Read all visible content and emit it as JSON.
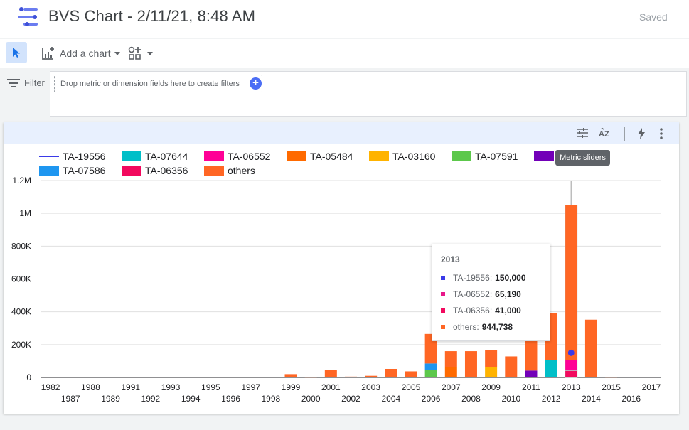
{
  "app": {
    "title": "BVS Chart - 2/11/21, 8:48 AM",
    "save_status": "Saved"
  },
  "toolbar": {
    "add_chart_label": "Add a chart"
  },
  "filter": {
    "label": "Filter",
    "drop_placeholder": "Drop metric or dimension fields here to create filters"
  },
  "card": {
    "tooltip": "Metric sliders"
  },
  "hover": {
    "title": "2013",
    "rows": [
      {
        "name": "TA-19556",
        "value": "150,000",
        "color": "#3a3ae8"
      },
      {
        "name": "TA-06552",
        "value": "65,190",
        "color": "#e8178a"
      },
      {
        "name": "TA-06356",
        "value": "41,000",
        "color": "#f2095e"
      },
      {
        "name": "others",
        "value": "944,738",
        "color": "#ff6624"
      }
    ]
  },
  "legend": [
    {
      "name": "TA-19556",
      "color": "#3a3ae8",
      "kind": "line"
    },
    {
      "name": "TA-07644",
      "color": "#00bfc8",
      "kind": "bar"
    },
    {
      "name": "TA-06552",
      "color": "#ff0096",
      "kind": "bar"
    },
    {
      "name": "TA-05484",
      "color": "#ff6a00",
      "kind": "bar"
    },
    {
      "name": "TA-03160",
      "color": "#ffb300",
      "kind": "bar"
    },
    {
      "name": "TA-07591",
      "color": "#5cc84b",
      "kind": "bar"
    },
    {
      "name": "",
      "color": "#7200b8",
      "kind": "bar"
    },
    {
      "name": "TA-07586",
      "color": "#1e96f0",
      "kind": "bar"
    },
    {
      "name": "TA-06356",
      "color": "#f2095e",
      "kind": "bar"
    },
    {
      "name": "others",
      "color": "#ff6624",
      "kind": "bar"
    }
  ],
  "chart_data": {
    "type": "bar",
    "stacked": true,
    "ylim": [
      0,
      1200000
    ],
    "y_ticks": [
      0,
      200000,
      400000,
      600000,
      800000,
      1000000,
      1200000
    ],
    "y_tick_labels": [
      "0",
      "200K",
      "400K",
      "600K",
      "800K",
      "1M",
      "1.2M"
    ],
    "grid": true,
    "legend_position": "top",
    "categories": [
      "1982",
      "1987",
      "1988",
      "1989",
      "1991",
      "1992",
      "1993",
      "1994",
      "1995",
      "1996",
      "1997",
      "1998",
      "1999",
      "2000",
      "2001",
      "2002",
      "2003",
      "2004",
      "2005",
      "2006",
      "2007",
      "2008",
      "2009",
      "2010",
      "2011",
      "2012",
      "2013",
      "2014",
      "2015",
      "2016",
      "2017"
    ],
    "series": [
      {
        "name": "TA-07591",
        "color": "#5cc84b",
        "values": [
          0,
          0,
          0,
          0,
          0,
          0,
          0,
          0,
          0,
          0,
          0,
          0,
          0,
          0,
          0,
          0,
          0,
          0,
          0,
          45000,
          0,
          0,
          0,
          0,
          0,
          0,
          0,
          0,
          0,
          0,
          0
        ]
      },
      {
        "name": "TA-07586",
        "color": "#1e96f0",
        "values": [
          0,
          0,
          0,
          0,
          0,
          0,
          0,
          0,
          0,
          0,
          0,
          0,
          0,
          0,
          0,
          0,
          0,
          0,
          0,
          40000,
          0,
          0,
          0,
          0,
          0,
          0,
          0,
          0,
          0,
          0,
          0
        ]
      },
      {
        "name": "TA-05484",
        "color": "#ff6a00",
        "values": [
          0,
          0,
          0,
          0,
          0,
          0,
          0,
          0,
          0,
          0,
          0,
          0,
          0,
          0,
          0,
          0,
          0,
          0,
          0,
          0,
          65000,
          0,
          0,
          0,
          0,
          0,
          0,
          0,
          0,
          0,
          0
        ]
      },
      {
        "name": "TA-03160",
        "color": "#ffb300",
        "values": [
          0,
          0,
          0,
          0,
          0,
          0,
          0,
          0,
          0,
          0,
          0,
          0,
          0,
          0,
          0,
          0,
          0,
          0,
          0,
          0,
          0,
          0,
          65000,
          0,
          0,
          0,
          0,
          0,
          0,
          0,
          0
        ]
      },
      {
        "name": "",
        "color": "#7200b8",
        "values": [
          0,
          0,
          0,
          0,
          0,
          0,
          0,
          0,
          0,
          0,
          0,
          0,
          0,
          0,
          0,
          0,
          0,
          0,
          0,
          0,
          0,
          0,
          0,
          0,
          42000,
          0,
          0,
          0,
          0,
          0,
          0
        ]
      },
      {
        "name": "TA-07644",
        "color": "#00bfc8",
        "values": [
          0,
          0,
          0,
          0,
          0,
          0,
          0,
          0,
          0,
          0,
          0,
          0,
          0,
          0,
          0,
          0,
          0,
          0,
          0,
          0,
          0,
          0,
          0,
          0,
          0,
          108000,
          0,
          0,
          0,
          0,
          0
        ]
      },
      {
        "name": "TA-06356",
        "color": "#f2095e",
        "values": [
          0,
          0,
          0,
          0,
          0,
          0,
          0,
          0,
          0,
          0,
          0,
          0,
          0,
          0,
          0,
          0,
          0,
          0,
          0,
          0,
          0,
          0,
          0,
          0,
          0,
          0,
          41000,
          0,
          0,
          0,
          0
        ]
      },
      {
        "name": "TA-06552",
        "color": "#ff0096",
        "values": [
          0,
          0,
          0,
          0,
          0,
          0,
          0,
          0,
          0,
          0,
          0,
          0,
          0,
          0,
          0,
          0,
          0,
          0,
          0,
          0,
          0,
          0,
          0,
          0,
          0,
          0,
          65190,
          0,
          0,
          0,
          0
        ]
      },
      {
        "name": "others",
        "color": "#ff6624",
        "values": [
          0,
          0,
          0,
          0,
          0,
          0,
          0,
          0,
          0,
          0,
          4000,
          0,
          20000,
          3000,
          45000,
          5000,
          10000,
          52000,
          37000,
          180000,
          95000,
          160000,
          100000,
          128000,
          344000,
          282000,
          944738,
          352000,
          3000,
          0,
          0
        ]
      }
    ],
    "line_series": {
      "name": "TA-19556",
      "color": "#3a3ae8",
      "category": "2013",
      "value": 150000
    },
    "highlight_category": "2013"
  }
}
